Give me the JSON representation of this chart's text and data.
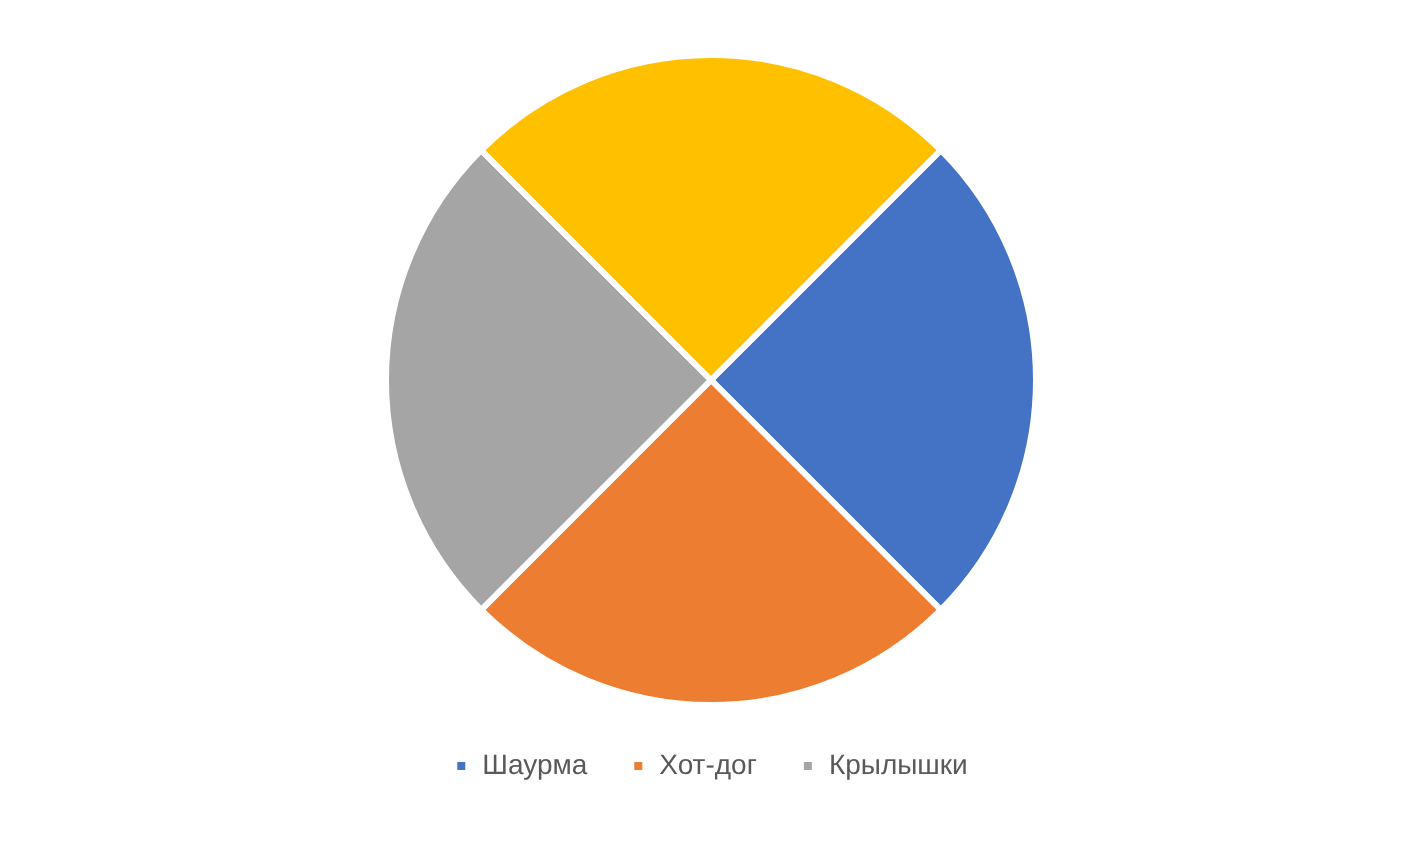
{
  "chart_data": {
    "type": "pie",
    "categories": [
      "Шаурма",
      "Хот-дог",
      "Крылышки",
      null
    ],
    "values": [
      25,
      25,
      25,
      25
    ],
    "colors": [
      "#4472c4",
      "#ed7d31",
      "#a5a5a5",
      "#ffc000"
    ],
    "legend": "bottom"
  }
}
